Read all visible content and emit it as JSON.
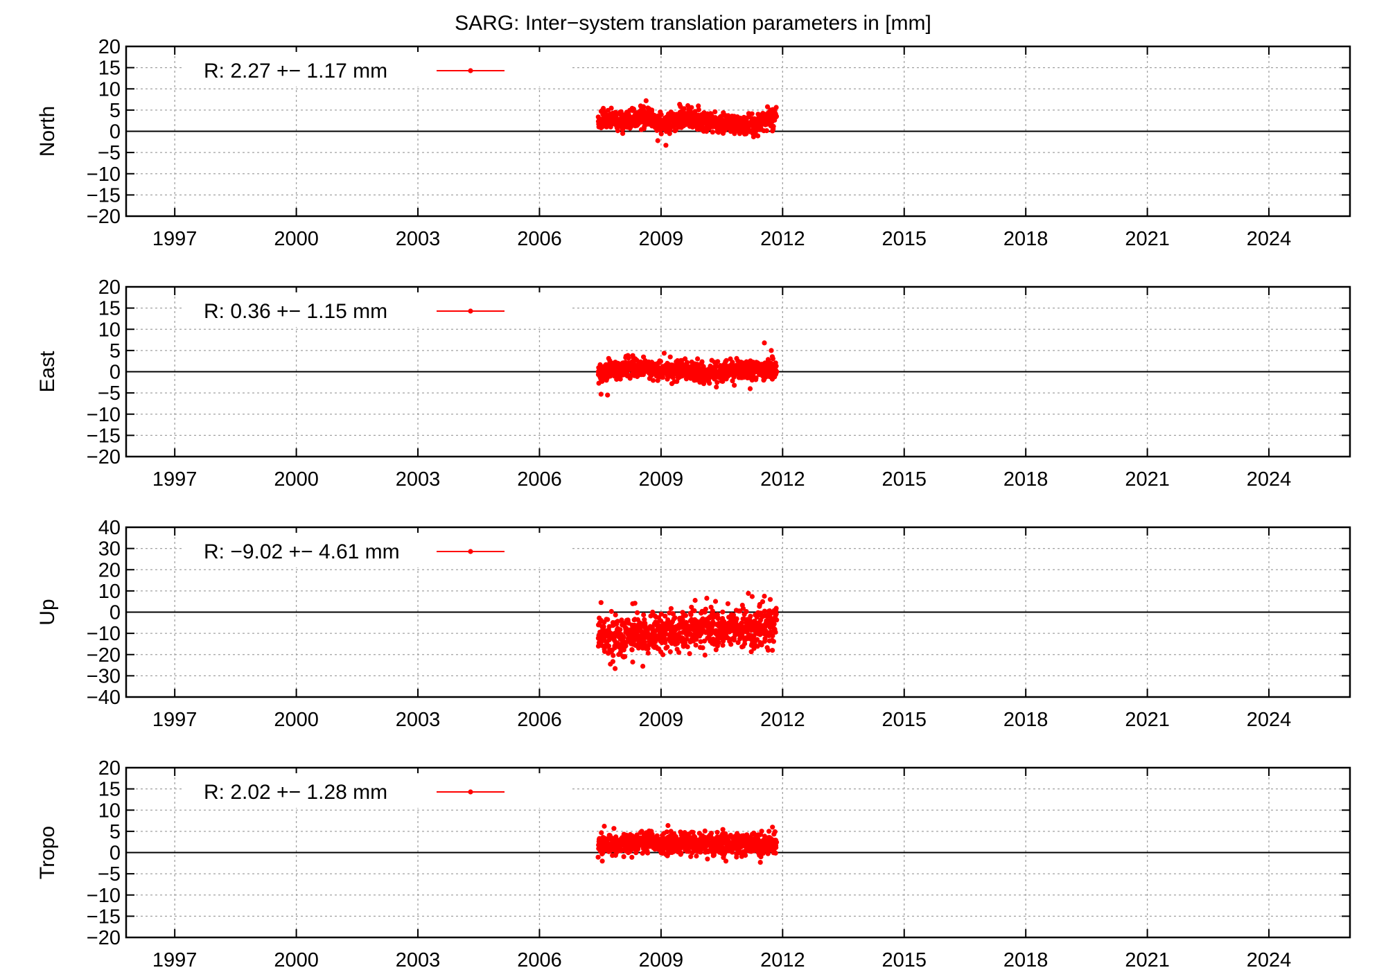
{
  "figure": {
    "title": "SARG: Inter−system translation parameters in [mm]"
  },
  "chart_data": [
    {
      "type": "scatter",
      "ylabel": "North",
      "xlim": [
        1995.8,
        2026.0
      ],
      "ylim": [
        -20,
        20
      ],
      "yticks": [
        20,
        15,
        10,
        5,
        0,
        -5,
        -10,
        -15,
        -20
      ],
      "ytick_labels": [
        "20",
        "15",
        "10",
        "5",
        "0",
        "−5",
        "−10",
        "−15",
        "−20"
      ],
      "xticks": [
        1997,
        2000,
        2003,
        2006,
        2009,
        2012,
        2015,
        2018,
        2021,
        2024
      ],
      "xtick_labels": [
        "1997",
        "2000",
        "2003",
        "2006",
        "2009",
        "2012",
        "2015",
        "2018",
        "2021",
        "2024"
      ],
      "grid": true,
      "legend_position": "top-left",
      "series": [
        {
          "legend": "R:   2.27 +− 1.17 mm",
          "color": "#ff0000",
          "x_range": [
            2007.45,
            2011.85
          ],
          "mean": 2.27,
          "spread": 1.17,
          "x": [
            2007.5,
            2007.8,
            2008.2,
            2008.6,
            2008.95,
            2009.3,
            2009.7,
            2010.1,
            2010.5,
            2010.9,
            2011.3,
            2011.7
          ],
          "y": [
            2.5,
            2.8,
            2.4,
            3.5,
            1.8,
            2.6,
            2.9,
            2.3,
            2.0,
            1.6,
            1.4,
            3.2
          ],
          "extremes": [
            [
              2008.63,
              7.2
            ],
            [
              2009.12,
              -3.3
            ],
            [
              2008.92,
              -2.2
            ],
            [
              2009.75,
              5.6
            ],
            [
              2011.7,
              5.0
            ]
          ]
        }
      ]
    },
    {
      "type": "scatter",
      "ylabel": "East",
      "xlim": [
        1995.8,
        2026.0
      ],
      "ylim": [
        -20,
        20
      ],
      "yticks": [
        20,
        15,
        10,
        5,
        0,
        -5,
        -10,
        -15,
        -20
      ],
      "ytick_labels": [
        "20",
        "15",
        "10",
        "5",
        "0",
        "−5",
        "−10",
        "−15",
        "−20"
      ],
      "xticks": [
        1997,
        2000,
        2003,
        2006,
        2009,
        2012,
        2015,
        2018,
        2021,
        2024
      ],
      "xtick_labels": [
        "1997",
        "2000",
        "2003",
        "2006",
        "2009",
        "2012",
        "2015",
        "2018",
        "2021",
        "2024"
      ],
      "grid": true,
      "legend_position": "top-left",
      "series": [
        {
          "legend": "R:   0.36 +− 1.15 mm",
          "color": "#ff0000",
          "x_range": [
            2007.45,
            2011.85
          ],
          "mean": 0.36,
          "spread": 1.15,
          "x": [
            2007.5,
            2007.8,
            2008.2,
            2008.6,
            2008.95,
            2009.3,
            2009.7,
            2010.1,
            2010.5,
            2010.9,
            2011.3,
            2011.7
          ],
          "y": [
            -0.5,
            0.6,
            0.9,
            0.8,
            0.4,
            0.3,
            0.2,
            -0.3,
            0.1,
            0.5,
            0.2,
            0.8
          ],
          "extremes": [
            [
              2007.52,
              -5.3
            ],
            [
              2007.68,
              -5.5
            ],
            [
              2011.55,
              6.8
            ],
            [
              2011.72,
              5.0
            ],
            [
              2011.2,
              -4.0
            ]
          ]
        }
      ]
    },
    {
      "type": "scatter",
      "ylabel": "Up",
      "xlim": [
        1995.8,
        2026.0
      ],
      "ylim": [
        -40,
        40
      ],
      "yticks": [
        40,
        30,
        20,
        10,
        0,
        -10,
        -20,
        -30,
        -40
      ],
      "ytick_labels": [
        "40",
        "30",
        "20",
        "10",
        "0",
        "−10",
        "−20",
        "−30",
        "−40"
      ],
      "xticks": [
        1997,
        2000,
        2003,
        2006,
        2009,
        2012,
        2015,
        2018,
        2021,
        2024
      ],
      "xtick_labels": [
        "1997",
        "2000",
        "2003",
        "2006",
        "2009",
        "2012",
        "2015",
        "2018",
        "2021",
        "2024"
      ],
      "grid": true,
      "legend_position": "top-left",
      "series": [
        {
          "legend": "R:  −9.02 +− 4.61 mm",
          "color": "#ff0000",
          "x_range": [
            2007.45,
            2011.85
          ],
          "mean": -9.02,
          "spread": 4.61,
          "x": [
            2007.5,
            2007.8,
            2008.2,
            2008.6,
            2008.95,
            2009.3,
            2009.7,
            2010.1,
            2010.5,
            2010.9,
            2011.3,
            2011.7
          ],
          "y": [
            -11.5,
            -12.0,
            -11.0,
            -10.5,
            -9.5,
            -9.0,
            -8.5,
            -8.0,
            -7.5,
            -7.5,
            -7.0,
            -6.0
          ],
          "extremes": [
            [
              2007.52,
              4.5
            ],
            [
              2008.3,
              4.0
            ],
            [
              2007.75,
              -24.5
            ],
            [
              2008.55,
              -25.5
            ],
            [
              2011.55,
              7.5
            ],
            [
              2010.65,
              4.0
            ]
          ]
        }
      ]
    },
    {
      "type": "scatter",
      "ylabel": "Tropo",
      "xlim": [
        1995.8,
        2026.0
      ],
      "ylim": [
        -20,
        20
      ],
      "yticks": [
        20,
        15,
        10,
        5,
        0,
        -5,
        -10,
        -15,
        -20
      ],
      "ytick_labels": [
        "20",
        "15",
        "10",
        "5",
        "0",
        "−5",
        "−10",
        "−15",
        "−20"
      ],
      "xticks": [
        1997,
        2000,
        2003,
        2006,
        2009,
        2012,
        2015,
        2018,
        2021,
        2024
      ],
      "xtick_labels": [
        "1997",
        "2000",
        "2003",
        "2006",
        "2009",
        "2012",
        "2015",
        "2018",
        "2021",
        "2024"
      ],
      "grid": true,
      "legend_position": "top-left",
      "series": [
        {
          "legend": "R:   2.02 +− 1.28 mm",
          "color": "#ff0000",
          "x_range": [
            2007.45,
            2011.85
          ],
          "mean": 2.02,
          "spread": 1.28,
          "x": [
            2007.5,
            2007.8,
            2008.2,
            2008.6,
            2008.95,
            2009.3,
            2009.7,
            2010.1,
            2010.5,
            2010.9,
            2011.3,
            2011.7
          ],
          "y": [
            2.0,
            2.3,
            2.2,
            2.5,
            2.0,
            2.1,
            2.2,
            2.0,
            1.9,
            2.0,
            1.8,
            2.1
          ],
          "extremes": [
            [
              2007.6,
              6.2
            ],
            [
              2011.75,
              6.0
            ],
            [
              2010.6,
              -2.0
            ],
            [
              2011.45,
              -2.3
            ],
            [
              2007.55,
              -2.0
            ]
          ]
        }
      ]
    }
  ]
}
